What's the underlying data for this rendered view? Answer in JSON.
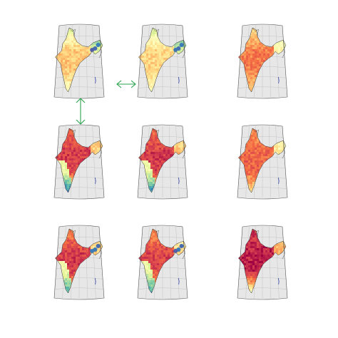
{
  "figure": {
    "layout": {
      "rows": 3,
      "columns": 3
    },
    "colors": {
      "background": "#ffffff",
      "map_panel": "#e7e7e7",
      "graticule": "#c4c4c4",
      "panel_border": "#555555",
      "coastline": "#333333",
      "arrow": "#2ca24d",
      "colormap": [
        "#9e0142",
        "#d53e4f",
        "#f46d43",
        "#fdae61",
        "#fee08b",
        "#ffffbf",
        "#e6f598",
        "#abdda4",
        "#66c2a5",
        "#3288bd",
        "#5e4fa2"
      ]
    },
    "panels": [
      {
        "id": "r1c1",
        "row": 1,
        "col": 1,
        "base_level": 0.35,
        "north_gradient": 0.25,
        "south_value": 0.55,
        "nodata_coast": false,
        "blue_spots": true
      },
      {
        "id": "r1c2",
        "row": 1,
        "col": 2,
        "base_level": 0.38,
        "north_gradient": 0.25,
        "south_value": 0.55,
        "nodata_coast": false,
        "blue_spots": true
      },
      {
        "id": "r1c3",
        "row": 1,
        "col": 3,
        "base_level": 0.22,
        "north_gradient": 0.2,
        "south_value": 0.4,
        "nodata_coast": false,
        "blue_spots": false
      },
      {
        "id": "r2c1",
        "row": 2,
        "col": 1,
        "base_level": 0.1,
        "north_gradient": 0.1,
        "south_value": 0.6,
        "nodata_coast": true,
        "blue_spots": false
      },
      {
        "id": "r2c2",
        "row": 2,
        "col": 2,
        "base_level": 0.1,
        "north_gradient": 0.1,
        "south_value": 0.55,
        "nodata_coast": true,
        "blue_spots": false
      },
      {
        "id": "r2c3",
        "row": 2,
        "col": 3,
        "base_level": 0.18,
        "north_gradient": 0.1,
        "south_value": 0.45,
        "nodata_coast": false,
        "blue_spots": false
      },
      {
        "id": "r3c1",
        "row": 3,
        "col": 1,
        "base_level": 0.1,
        "north_gradient": 0.15,
        "south_value": 0.5,
        "nodata_coast": true,
        "blue_spots": true
      },
      {
        "id": "r3c2",
        "row": 3,
        "col": 2,
        "base_level": 0.12,
        "north_gradient": 0.15,
        "south_value": 0.5,
        "nodata_coast": true,
        "blue_spots": true
      },
      {
        "id": "r3c3",
        "row": 3,
        "col": 3,
        "base_level": 0.05,
        "north_gradient": 0.05,
        "south_value": 0.6,
        "nodata_coast": false,
        "blue_spots": false
      }
    ],
    "arrows": [
      {
        "id": "horizontal-double-arrow",
        "between": [
          "r1c1",
          "r1c2"
        ],
        "orientation": "horizontal"
      },
      {
        "id": "vertical-double-arrow",
        "between": [
          "r1c1",
          "r2c1"
        ],
        "orientation": "vertical"
      }
    ]
  }
}
